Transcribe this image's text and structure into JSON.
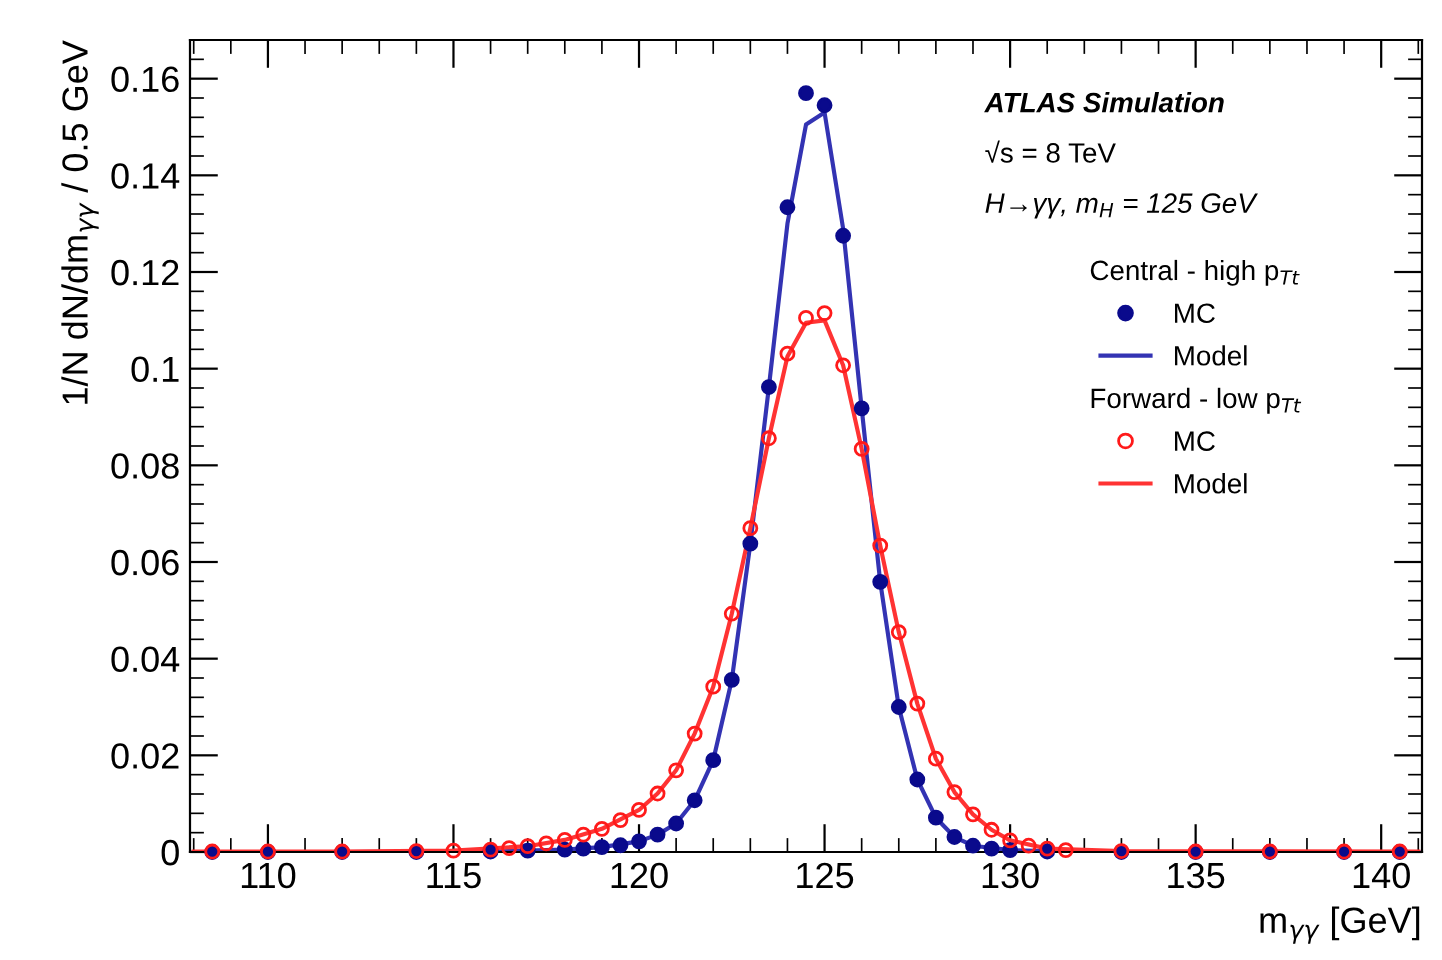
{
  "chart_data": {
    "type": "scatter",
    "xlabel": "m$_{γγ}$ [GeV]",
    "ylabel": "1/N dN/dm$_{γγ}$ / 0.5 GeV",
    "annotations": [
      "ATLAS Simulation",
      "√s = 8 TeV",
      "H→γγ, m$_{H}$ = 125 GeV",
      "Central - high p$_{Tt}$",
      "Forward - low p$_{Tt}$"
    ],
    "xlim": [
      107.9,
      141.1
    ],
    "xticks": [
      110,
      115,
      120,
      125,
      130,
      135,
      140
    ],
    "ylim": [
      0,
      0.168
    ],
    "yticks": [
      0,
      0.02,
      0.04,
      0.06,
      0.08,
      0.1,
      0.12,
      0.14,
      0.16
    ],
    "grid": false,
    "legend": "top right",
    "series": [
      {
        "name": "MC",
        "marker": "circle",
        "color": "#0a0a8c",
        "x": [
          108.5,
          110,
          112,
          114,
          116,
          117,
          118,
          118.5,
          119,
          119.5,
          120,
          120.5,
          121,
          121.5,
          122,
          122.5,
          123,
          123.5,
          124,
          124.5,
          125,
          125.5,
          126,
          126.5,
          127,
          127.5,
          128,
          128.5,
          129,
          129.5,
          130,
          131,
          133,
          135,
          137,
          139,
          140.5
        ],
        "values": [
          0,
          0,
          0,
          0,
          0.0001,
          0.0003,
          0.0005,
          0.0007,
          0.001,
          0.0014,
          0.0022,
          0.0036,
          0.0059,
          0.0107,
          0.019,
          0.0356,
          0.0638,
          0.0962,
          0.1334,
          0.157,
          0.1545,
          0.1275,
          0.0918,
          0.0559,
          0.03,
          0.015,
          0.0071,
          0.0031,
          0.0013,
          0.0007,
          0.0004,
          0.0001,
          0,
          0,
          0,
          0,
          0
        ]
      },
      {
        "name": "Model",
        "type": "line",
        "color": "#3333b3",
        "x": [
          108,
          112,
          116,
          118,
          119,
          120,
          120.5,
          121,
          121.5,
          122,
          122.5,
          123,
          123.5,
          124,
          124.5,
          125,
          125.5,
          126,
          126.5,
          127,
          127.5,
          128,
          128.5,
          129,
          130,
          132,
          141
        ],
        "values": [
          0,
          0,
          0.0001,
          0.0005,
          0.001,
          0.0022,
          0.0036,
          0.0059,
          0.0107,
          0.019,
          0.0356,
          0.0638,
          0.0962,
          0.13,
          0.1505,
          0.153,
          0.129,
          0.0918,
          0.0559,
          0.03,
          0.015,
          0.0071,
          0.0031,
          0.0013,
          0.0004,
          0,
          0
        ]
      },
      {
        "name": "MC",
        "marker": "circle",
        "color": "#ff1a1a",
        "x": [
          108.5,
          110,
          112,
          114,
          115,
          116,
          116.5,
          117,
          117.5,
          118,
          118.5,
          119,
          119.5,
          120,
          120.5,
          121,
          121.5,
          122,
          122.5,
          123,
          123.5,
          124,
          124.5,
          125,
          125.5,
          126,
          126.5,
          127,
          127.5,
          128,
          128.5,
          129,
          129.5,
          130,
          130.5,
          131,
          131.5,
          133,
          135,
          137,
          139,
          140.5
        ],
        "values": [
          0.0001,
          0.0001,
          0.0001,
          0.0002,
          0.0003,
          0.0005,
          0.0008,
          0.0012,
          0.0018,
          0.0025,
          0.0036,
          0.0048,
          0.0066,
          0.0087,
          0.0121,
          0.0169,
          0.0245,
          0.0342,
          0.0493,
          0.067,
          0.0856,
          0.1031,
          0.1105,
          0.1115,
          0.1007,
          0.0834,
          0.0634,
          0.0455,
          0.0307,
          0.0193,
          0.0124,
          0.0078,
          0.0046,
          0.0024,
          0.0013,
          0.0007,
          0.0004,
          0.0002,
          0.0001,
          0.0001,
          0.0001,
          0.0001
        ]
      },
      {
        "name": "Model",
        "type": "line",
        "color": "#ff3333",
        "x": [
          108,
          112,
          115,
          117,
          118,
          119,
          120,
          120.5,
          121,
          121.5,
          122,
          122.5,
          123,
          123.5,
          124,
          124.5,
          125,
          125.5,
          126,
          126.5,
          127,
          127.5,
          128,
          128.5,
          129,
          129.5,
          130,
          131,
          133,
          141
        ],
        "values": [
          0.0001,
          0.0001,
          0.0003,
          0.0012,
          0.0025,
          0.0048,
          0.0087,
          0.0121,
          0.0169,
          0.0245,
          0.0342,
          0.0493,
          0.067,
          0.0856,
          0.1025,
          0.1095,
          0.11,
          0.1007,
          0.0834,
          0.0634,
          0.0455,
          0.0307,
          0.0193,
          0.0124,
          0.0078,
          0.0046,
          0.0024,
          0.0007,
          0.0002,
          0.0001
        ]
      }
    ]
  }
}
